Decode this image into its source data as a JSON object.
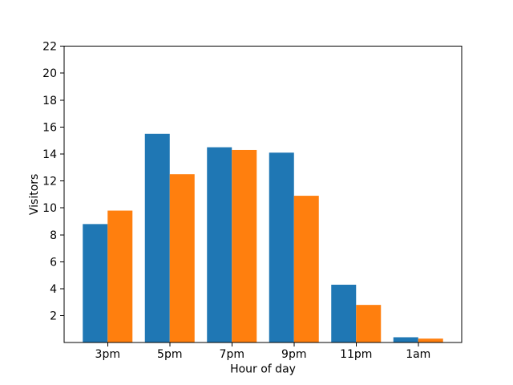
{
  "figure": {
    "background": "#ffffff"
  },
  "chart_data": {
    "type": "bar",
    "title": "",
    "xlabel": "Hour of day",
    "ylabel": "Visitors",
    "categories": [
      "3pm",
      "5pm",
      "7pm",
      "9pm",
      "11pm",
      "1am"
    ],
    "series": [
      {
        "name": "blue",
        "color": "#1f77b4",
        "values": [
          8.8,
          15.5,
          14.5,
          14.1,
          4.3,
          0.4
        ]
      },
      {
        "name": "orange",
        "color": "#ff7f0e",
        "values": [
          9.8,
          12.5,
          14.3,
          10.9,
          2.8,
          0.3
        ]
      }
    ],
    "bar_width": 0.4,
    "ylim": [
      0,
      22
    ],
    "yticks": [
      2,
      4,
      6,
      8,
      10,
      12,
      14,
      16,
      18,
      20,
      22
    ],
    "xlim": [
      -0.7,
      5.7
    ],
    "grid": false,
    "legend_position": "none",
    "frame_color": "#000000",
    "text_color": "#000000"
  }
}
